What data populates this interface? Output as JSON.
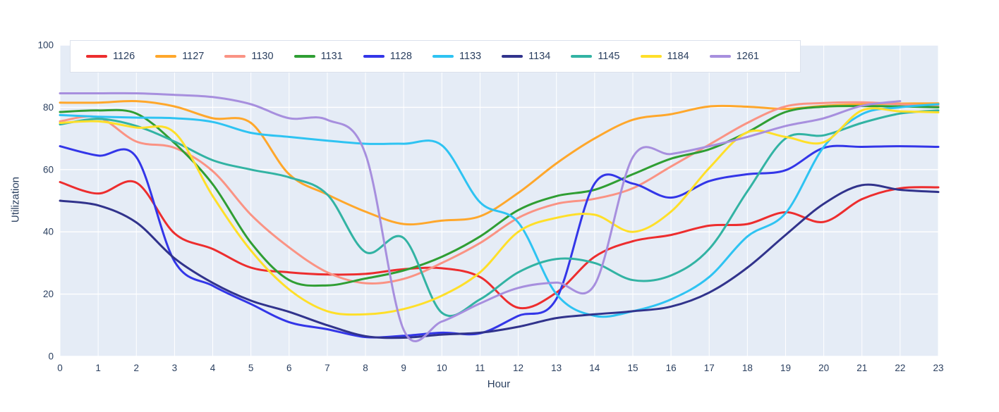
{
  "figure": {
    "x_axis_title": "Hour",
    "y_axis_title": "Utilization"
  },
  "chart_data": {
    "type": "line",
    "title": "",
    "xlabel": "Hour",
    "ylabel": "Utilization",
    "line_shape": "spline",
    "grid": true,
    "legend_position": "top-inside-horizontal",
    "plot_bgcolor": "#e5ecf6",
    "paper_bgcolor": "#ffffff",
    "grid_color": "#ffffff",
    "text_color": "#2a3f5f",
    "xlim": [
      0,
      23
    ],
    "ylim": [
      0,
      100
    ],
    "x": [
      0,
      1,
      2,
      3,
      4,
      5,
      6,
      7,
      8,
      9,
      10,
      11,
      12,
      13,
      14,
      15,
      16,
      17,
      18,
      19,
      20,
      21,
      22,
      23
    ],
    "xticks": [
      0,
      1,
      2,
      3,
      4,
      5,
      6,
      7,
      8,
      9,
      10,
      11,
      12,
      13,
      14,
      15,
      16,
      17,
      18,
      19,
      20,
      21,
      22,
      23
    ],
    "yticks": [
      0,
      20,
      40,
      60,
      80,
      100
    ],
    "series": [
      {
        "name": "1126",
        "color": "#ed2d2e",
        "values": [
          56,
          52.3,
          55.8,
          39.5,
          34.5,
          28.5,
          27,
          26.3,
          26.5,
          28,
          28.3,
          25.5,
          15.6,
          20.5,
          32,
          37,
          39,
          42,
          42.5,
          46.3,
          43.2,
          50.5,
          54,
          54.3
        ]
      },
      {
        "name": "1127",
        "color": "#ffa72b",
        "values": [
          81.5,
          81.5,
          82,
          80.3,
          76.5,
          75,
          58.5,
          52,
          46.5,
          42.5,
          43.6,
          45,
          52.5,
          62,
          70,
          76,
          77.8,
          80.3,
          80.2,
          79.5,
          80.5,
          81,
          81.2,
          81.3
        ]
      },
      {
        "name": "1130",
        "color": "#fa9384",
        "values": [
          75.5,
          76.8,
          69,
          67,
          59.5,
          45.5,
          35,
          27,
          23.5,
          24.9,
          30,
          36.4,
          44.5,
          49,
          50.6,
          54,
          61,
          68,
          75,
          80.3,
          81.4,
          81.6,
          81,
          80.4
        ]
      },
      {
        "name": "1131",
        "color": "#2f9e33",
        "values": [
          78.5,
          79,
          78,
          68.5,
          55.3,
          36.5,
          24.5,
          22.8,
          25,
          27.6,
          32,
          38.5,
          47,
          51.5,
          53.5,
          58.5,
          63.5,
          66.5,
          72,
          78.5,
          80.2,
          80.4,
          80.3,
          80
        ]
      },
      {
        "name": "1128",
        "color": "#3336e8",
        "values": [
          67.5,
          64.5,
          64,
          30.5,
          22.7,
          16.8,
          11,
          8.7,
          6.2,
          6.6,
          7.6,
          7.4,
          13,
          18.5,
          55.5,
          55.5,
          51,
          56.3,
          58.5,
          59.8,
          67,
          67.3,
          67.5,
          67.3
        ]
      },
      {
        "name": "1133",
        "color": "#2ec3f2",
        "values": [
          77.5,
          77,
          76.7,
          76.5,
          75.3,
          71.8,
          70.5,
          69.3,
          68.3,
          68.3,
          67.8,
          49.5,
          43,
          20,
          13,
          14.5,
          18.3,
          25.5,
          38.5,
          46,
          67.3,
          77.8,
          80,
          81
        ]
      },
      {
        "name": "1134",
        "color": "#31338c",
        "values": [
          50,
          48.5,
          43,
          31.5,
          23.6,
          17.9,
          14.3,
          10,
          6.5,
          6,
          7,
          7.6,
          9.5,
          12.3,
          13.5,
          14.5,
          16,
          20.5,
          28.5,
          39,
          49,
          55,
          53.5,
          52.8
        ]
      },
      {
        "name": "1145",
        "color": "#32b3a3",
        "values": [
          74.5,
          76.3,
          74,
          69,
          63,
          60,
          57.5,
          52,
          33.5,
          38,
          14,
          18.3,
          27,
          31.3,
          30,
          24.5,
          26,
          34.5,
          53,
          70,
          71,
          75,
          78,
          79
        ]
      },
      {
        "name": "1184",
        "color": "#ffdf29",
        "values": [
          75,
          75.5,
          73.5,
          71.9,
          51.5,
          34,
          21.5,
          14.5,
          13.5,
          15.2,
          19.5,
          27,
          40,
          44.5,
          45.5,
          40,
          46.5,
          60.5,
          72,
          70.5,
          68.8,
          79,
          78.7,
          78.4
        ]
      },
      {
        "name": "1261",
        "color": "#a78fde",
        "values": [
          84.5,
          84.5,
          84.5,
          84,
          83.3,
          81,
          76.5,
          76,
          65,
          8.5,
          11.2,
          17,
          22,
          23.7,
          23,
          64,
          65,
          67.5,
          70.5,
          74,
          76.5,
          80.5,
          82,
          null
        ]
      }
    ]
  }
}
